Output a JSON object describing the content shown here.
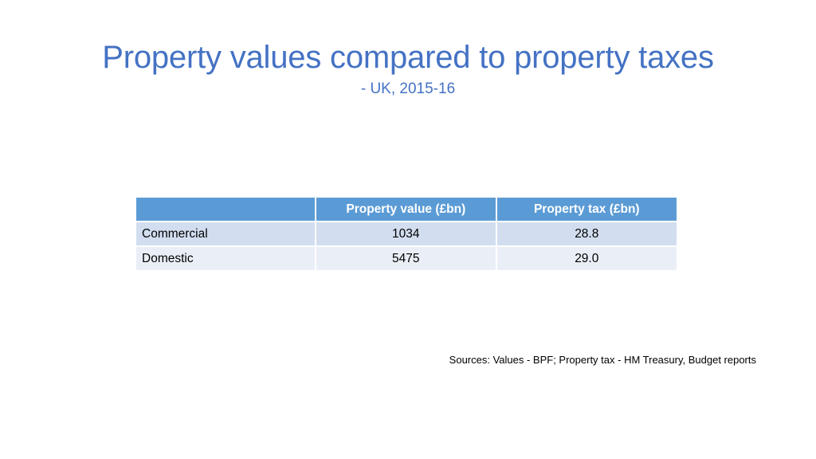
{
  "slide": {
    "title": "Property values compared to property taxes",
    "subtitle": "- UK, 2015-16",
    "sources": "Sources: Values - BPF; Property tax - HM Treasury, Budget reports"
  },
  "table": {
    "headers": [
      "",
      "Property value (£bn)",
      "Property tax (£bn)"
    ],
    "rows": [
      {
        "label": "Commercial",
        "value": "1034",
        "tax": "28.8"
      },
      {
        "label": "Domestic",
        "value": "5475",
        "tax": "29.0"
      }
    ]
  },
  "colors": {
    "title": "#4472c4",
    "header_bg": "#5b9bd5",
    "row_odd_bg": "#d2deef",
    "row_even_bg": "#eaeff7"
  }
}
